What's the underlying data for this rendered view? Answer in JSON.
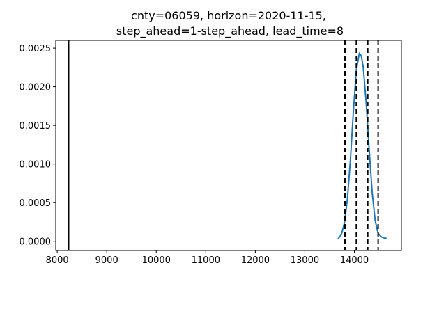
{
  "chart_data": {
    "type": "line",
    "title_lines": [
      "cnty=06059, horizon=2020-11-15,",
      "step_ahead=1-step_ahead, lead_time=8"
    ],
    "xlabel": "",
    "ylabel": "",
    "xlim": [
      7970,
      14950
    ],
    "ylim": [
      -0.00012,
      0.0026
    ],
    "xticks": [
      8000,
      9000,
      10000,
      11000,
      12000,
      13000,
      14000
    ],
    "yticks": [
      0.0,
      0.0005,
      0.001,
      0.0015,
      0.002,
      0.0025
    ],
    "ytick_labels": [
      "0.0000",
      "0.0005",
      "0.0010",
      "0.0015",
      "0.0020",
      "0.0025"
    ],
    "grid": false,
    "series": [
      {
        "color": "#1f77b4",
        "x": [
          13670,
          13740,
          13800,
          13860,
          13920,
          13980,
          14040,
          14100,
          14140,
          14180,
          14240,
          14300,
          14360,
          14420,
          14480,
          14540,
          14610,
          14650
        ],
        "y": [
          3e-05,
          9e-05,
          0.00024,
          0.00055,
          0.00105,
          0.00168,
          0.00222,
          0.00243,
          0.0024,
          0.00225,
          0.00178,
          0.00118,
          0.00063,
          0.00027,
          0.0001,
          6e-05,
          4e-05,
          4e-05
        ]
      }
    ],
    "vlines": [
      {
        "x": 8230,
        "style": "solid",
        "color": "#000000"
      },
      {
        "x": 13810,
        "style": "dashed",
        "color": "#000000"
      },
      {
        "x": 14040,
        "style": "dashed",
        "color": "#000000"
      },
      {
        "x": 14270,
        "style": "dashed",
        "color": "#000000"
      },
      {
        "x": 14480,
        "style": "dashed",
        "color": "#000000"
      }
    ]
  }
}
